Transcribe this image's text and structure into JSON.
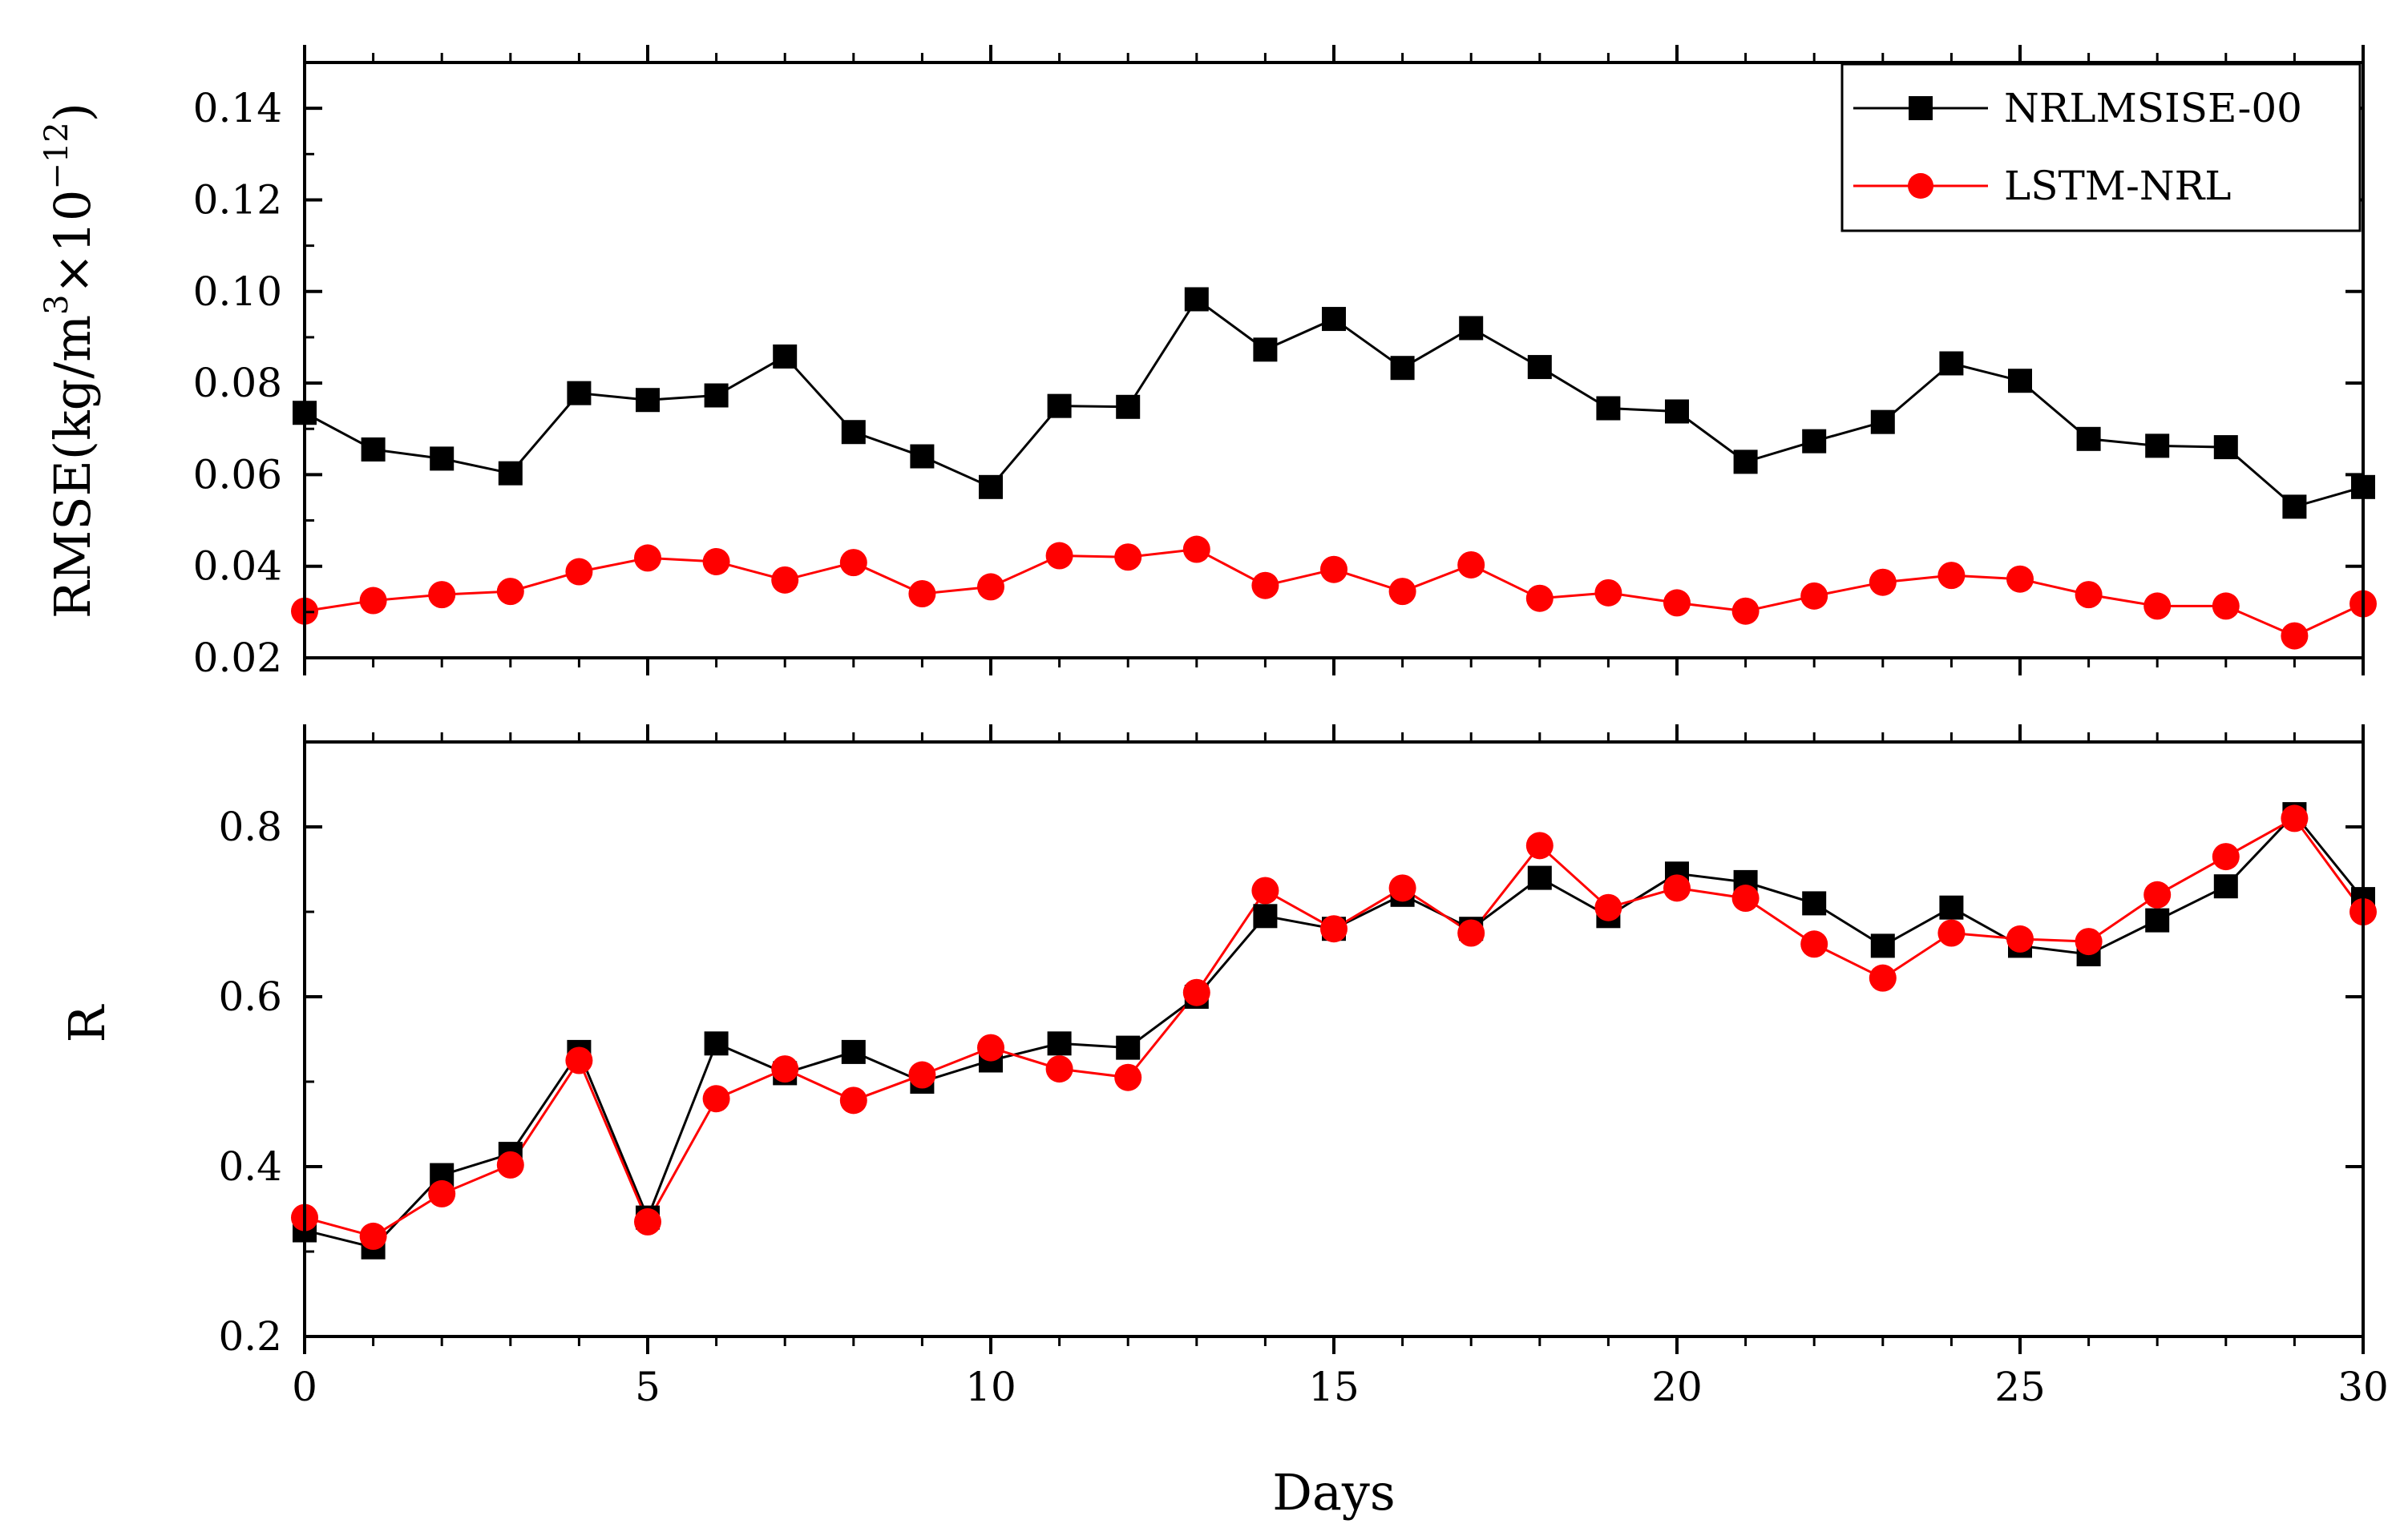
{
  "chart_data": [
    {
      "type": "line",
      "panel": "top",
      "ylabel_prefix": "RMSE(kg/m",
      "ylabel_sup1": "3",
      "ylabel_mid": "×10",
      "ylabel_sup2": "−12",
      "ylabel_suffix": ")",
      "xlim": [
        0,
        30
      ],
      "ylim": [
        0.02,
        0.15
      ],
      "yticks": [
        "0.02",
        "0.04",
        "0.06",
        "0.08",
        "0.10",
        "0.12",
        "0.14"
      ],
      "ytick_values": [
        0.02,
        0.04,
        0.06,
        0.08,
        0.1,
        0.12,
        0.14
      ],
      "legend": {
        "position": "top-right",
        "entries": [
          "NRLMSISE-00",
          "LSTM-NRL"
        ]
      },
      "x": [
        0,
        1,
        2,
        3,
        4,
        5,
        6,
        7,
        8,
        9,
        10,
        11,
        12,
        13,
        14,
        15,
        16,
        17,
        18,
        19,
        20,
        21,
        22,
        23,
        24,
        25,
        26,
        27,
        28,
        29,
        30
      ],
      "series": [
        {
          "name": "NRLMSISE-00",
          "color": "#000000",
          "marker": "square",
          "values": [
            0.0735,
            0.0655,
            0.0635,
            0.0603,
            0.0778,
            0.0763,
            0.0773,
            0.0858,
            0.0693,
            0.064,
            0.0573,
            0.075,
            0.0748,
            0.0983,
            0.0873,
            0.094,
            0.0833,
            0.092,
            0.0835,
            0.0745,
            0.0738,
            0.0628,
            0.0673,
            0.0715,
            0.0843,
            0.0805,
            0.0678,
            0.0663,
            0.066,
            0.053,
            0.0573
          ]
        },
        {
          "name": "LSTM-NRL",
          "color": "#ff0000",
          "marker": "circle",
          "values": [
            0.0302,
            0.0325,
            0.0338,
            0.0345,
            0.0388,
            0.0418,
            0.041,
            0.037,
            0.0408,
            0.034,
            0.0355,
            0.0423,
            0.042,
            0.0437,
            0.0358,
            0.0393,
            0.0345,
            0.0403,
            0.033,
            0.0342,
            0.032,
            0.0302,
            0.0335,
            0.0365,
            0.038,
            0.0372,
            0.0338,
            0.0313,
            0.0313,
            0.0248,
            0.0318
          ]
        }
      ]
    },
    {
      "type": "line",
      "panel": "bottom",
      "xlabel": "Days",
      "ylabel": "R",
      "xlim": [
        0,
        30
      ],
      "ylim": [
        0.2,
        0.9
      ],
      "xticks": [
        "0",
        "5",
        "10",
        "15",
        "20",
        "25",
        "30"
      ],
      "xtick_values": [
        0,
        5,
        10,
        15,
        20,
        25,
        30
      ],
      "yticks": [
        "0.2",
        "0.4",
        "0.6",
        "0.8"
      ],
      "ytick_values": [
        0.2,
        0.4,
        0.6,
        0.8
      ],
      "x": [
        0,
        1,
        2,
        3,
        4,
        5,
        6,
        7,
        8,
        9,
        10,
        11,
        12,
        13,
        14,
        15,
        16,
        17,
        18,
        19,
        20,
        21,
        22,
        23,
        24,
        25,
        26,
        27,
        28,
        29,
        30
      ],
      "series": [
        {
          "name": "NRLMSISE-00",
          "color": "#000000",
          "marker": "square",
          "values": [
            0.325,
            0.305,
            0.39,
            0.415,
            0.535,
            0.34,
            0.545,
            0.51,
            0.535,
            0.5,
            0.525,
            0.545,
            0.54,
            0.6,
            0.695,
            0.68,
            0.72,
            0.68,
            0.74,
            0.695,
            0.745,
            0.735,
            0.71,
            0.66,
            0.705,
            0.66,
            0.65,
            0.69,
            0.73,
            0.815,
            0.715
          ]
        },
        {
          "name": "LSTM-NRL",
          "color": "#ff0000",
          "marker": "circle",
          "values": [
            0.34,
            0.318,
            0.368,
            0.402,
            0.525,
            0.335,
            0.48,
            0.515,
            0.478,
            0.508,
            0.54,
            0.515,
            0.505,
            0.605,
            0.725,
            0.68,
            0.728,
            0.675,
            0.778,
            0.705,
            0.728,
            0.716,
            0.662,
            0.622,
            0.675,
            0.668,
            0.665,
            0.72,
            0.765,
            0.81,
            0.7
          ]
        }
      ]
    }
  ]
}
